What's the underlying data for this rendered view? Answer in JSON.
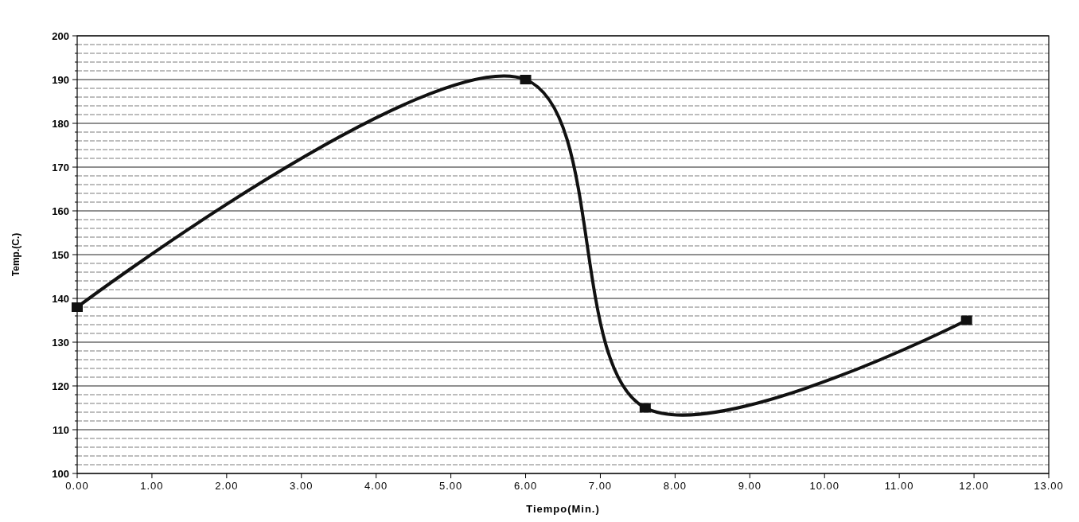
{
  "chart_data": {
    "type": "line",
    "xlabel": "Tiempo(Min.)",
    "ylabel": "Temp.(C.)",
    "x": [
      0,
      6,
      7.6,
      11.9
    ],
    "series": [
      {
        "color": "#111111",
        "values": [
          138,
          190,
          115,
          135
        ]
      }
    ],
    "xlim": [
      0,
      13
    ],
    "xticks": [
      {
        "value": 0,
        "label": "0.00"
      },
      {
        "value": 1,
        "label": "1.00"
      },
      {
        "value": 2,
        "label": "2.00"
      },
      {
        "value": 3,
        "label": "3.00"
      },
      {
        "value": 4,
        "label": "4.00"
      },
      {
        "value": 5,
        "label": "5.00"
      },
      {
        "value": 6,
        "label": "6.00"
      },
      {
        "value": 7,
        "label": "7.00"
      },
      {
        "value": 8,
        "label": "8.00"
      },
      {
        "value": 9,
        "label": "9.00"
      },
      {
        "value": 10,
        "label": "10.00"
      },
      {
        "value": 11,
        "label": "11.00"
      },
      {
        "value": 12,
        "label": "12.00"
      },
      {
        "value": 13,
        "label": "13.00"
      }
    ],
    "ylim": [
      100,
      200
    ],
    "yticks": [
      100,
      {
        "value": 102,
        "label": null
      },
      {
        "value": 104,
        "label": null
      },
      {
        "value": 106,
        "label": null
      },
      {
        "value": 108,
        "label": null
      },
      110,
      {
        "value": 112,
        "label": null
      },
      {
        "value": 114,
        "label": null
      },
      {
        "value": 116,
        "label": null
      },
      {
        "value": 118,
        "label": null
      },
      120,
      {
        "value": 122,
        "label": null
      },
      {
        "value": 124,
        "label": null
      },
      {
        "value": 126,
        "label": null
      },
      {
        "value": 128,
        "label": null
      },
      130,
      {
        "value": 132,
        "label": null
      },
      {
        "value": 134,
        "label": null
      },
      {
        "value": 136,
        "label": null
      },
      {
        "value": 138,
        "label": null
      },
      140,
      {
        "value": 142,
        "label": null
      },
      {
        "value": 144,
        "label": null
      },
      {
        "value": 146,
        "label": null
      },
      {
        "value": 148,
        "label": null
      },
      150,
      {
        "value": 152,
        "label": null
      },
      {
        "value": 154,
        "label": null
      },
      {
        "value": 156,
        "label": null
      },
      {
        "value": 158,
        "label": null
      },
      160,
      {
        "value": 162,
        "label": null
      },
      {
        "value": 164,
        "label": null
      },
      {
        "value": 166,
        "label": null
      },
      {
        "value": 168,
        "label": null
      },
      170,
      {
        "value": 172,
        "label": null
      },
      {
        "value": 174,
        "label": null
      },
      {
        "value": 176,
        "label": null
      },
      {
        "value": 178,
        "label": null
      },
      180,
      {
        "value": 182,
        "label": null
      },
      {
        "value": 184,
        "label": null
      },
      {
        "value": 186,
        "label": null
      },
      {
        "value": 188,
        "label": null
      },
      190,
      {
        "value": 192,
        "label": null
      },
      {
        "value": 194,
        "label": null
      },
      {
        "value": 196,
        "label": null
      },
      {
        "value": 198,
        "label": null
      },
      200
    ],
    "grid": "y",
    "marker": "square",
    "line_style": "solid"
  }
}
